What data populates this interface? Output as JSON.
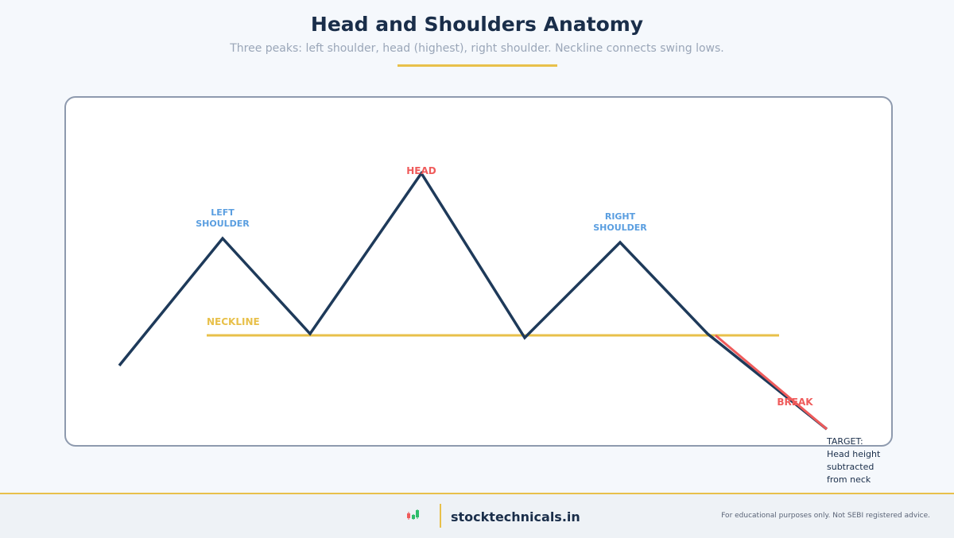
{
  "header": {
    "title": "Head and Shoulders Anatomy",
    "subtitle": "Three peaks: left shoulder, head (highest), right shoulder. Neckline connects swing lows."
  },
  "diagram": {
    "labels": {
      "left_shoulder_1": "LEFT",
      "left_shoulder_2": "SHOULDER",
      "head": "HEAD",
      "right_shoulder_1": "RIGHT",
      "right_shoulder_2": "SHOULDER",
      "neckline": "NECKLINE",
      "break": "BREAK"
    },
    "target": [
      "TARGET:",
      "Head height",
      "subtracted",
      "from neck"
    ],
    "colors": {
      "price": "#1e3a5a",
      "neckline": "#e8c04a",
      "break": "#ef5b5b",
      "shoulder_label": "#5a9ee0",
      "head_label": "#ef5b5b"
    }
  },
  "footer": {
    "brand": "stocktechnicals.in",
    "disclaimer": "For educational purposes only. Not SEBI registered advice.",
    "logo_icon": "candlestick-icon"
  }
}
